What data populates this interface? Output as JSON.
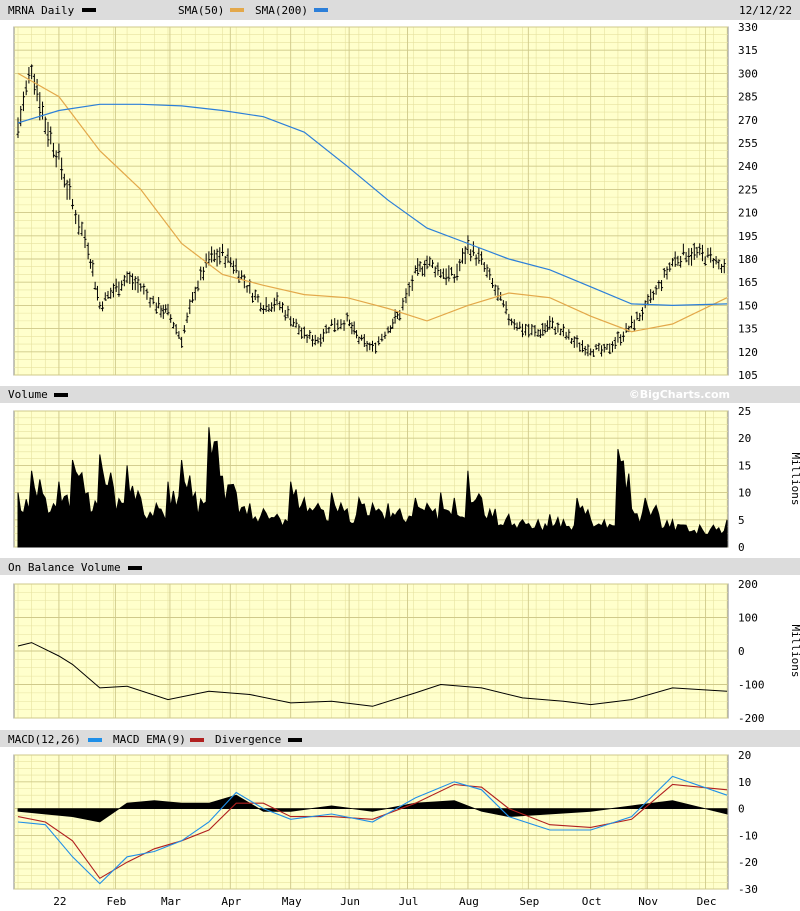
{
  "header": {
    "ticker_label": "MRNA Daily",
    "sma50_label": "SMA(50)",
    "sma200_label": "SMA(200)",
    "date": "12/12/22"
  },
  "watermark": "©BigCharts.com",
  "colors": {
    "panel_bg": "#ffffcc",
    "grid": "#e6e2a0",
    "header_bg": "#dcdcdc",
    "price": "#000000",
    "sma50": "#e3a84a",
    "sma200": "#2c7fd9",
    "macd": "#1f8fe8",
    "macd_ema": "#b02020",
    "divergence": "#000000"
  },
  "volume_panel": {
    "label": "Volume",
    "unit": "Millions"
  },
  "obv_panel": {
    "label": "On Balance Volume",
    "unit": "Millions"
  },
  "macd_panel": {
    "macd_label": "MACD(12,26)",
    "ema_label": "MACD EMA(9)",
    "divergence_label": "Divergence"
  },
  "x_axis_labels": [
    "22",
    "Feb",
    "Mar",
    "Apr",
    "May",
    "Jun",
    "Jul",
    "Aug",
    "Sep",
    "Oct",
    "Nov",
    "Dec"
  ],
  "chart_data": [
    {
      "type": "ohlc",
      "panel": "price",
      "ylim": [
        105,
        330
      ],
      "yticks": [
        105,
        120,
        135,
        150,
        165,
        180,
        195,
        210,
        225,
        240,
        255,
        270,
        285,
        300,
        315,
        330
      ],
      "grid": true,
      "series": [
        {
          "name": "MRNA Daily",
          "x": [
            "2021-12-13",
            "2021-12-20",
            "2021-12-27",
            "2022-01-03",
            "2022-01-10",
            "2022-01-18",
            "2022-01-24",
            "2022-01-31",
            "2022-02-07",
            "2022-02-14",
            "2022-02-22",
            "2022-02-28",
            "2022-03-07",
            "2022-03-14",
            "2022-03-21",
            "2022-03-28",
            "2022-04-04",
            "2022-04-11",
            "2022-04-18",
            "2022-04-25",
            "2022-05-02",
            "2022-05-09",
            "2022-05-16",
            "2022-05-23",
            "2022-05-31",
            "2022-06-06",
            "2022-06-13",
            "2022-06-21",
            "2022-06-27",
            "2022-07-05",
            "2022-07-11",
            "2022-07-18",
            "2022-07-25",
            "2022-08-01",
            "2022-08-08",
            "2022-08-15",
            "2022-08-22",
            "2022-08-29",
            "2022-09-06",
            "2022-09-12",
            "2022-09-19",
            "2022-09-26",
            "2022-10-03",
            "2022-10-10",
            "2022-10-17",
            "2022-10-24",
            "2022-10-31",
            "2022-11-07",
            "2022-11-14",
            "2022-11-21",
            "2022-11-28",
            "2022-12-05",
            "2022-12-12"
          ],
          "close": [
            265,
            305,
            268,
            245,
            215,
            188,
            150,
            160,
            168,
            162,
            150,
            145,
            128,
            160,
            180,
            183,
            175,
            160,
            150,
            152,
            142,
            130,
            128,
            138,
            140,
            128,
            122,
            135,
            145,
            170,
            178,
            172,
            168,
            188,
            178,
            160,
            142,
            135,
            132,
            138,
            132,
            125,
            122,
            120,
            128,
            137,
            148,
            162,
            178,
            184,
            183,
            180,
            170
          ]
        },
        {
          "name": "SMA(50)",
          "x": [
            "2021-12-13",
            "2022-01-03",
            "2022-01-24",
            "2022-02-14",
            "2022-03-07",
            "2022-03-28",
            "2022-04-18",
            "2022-05-09",
            "2022-05-31",
            "2022-06-21",
            "2022-07-11",
            "2022-08-01",
            "2022-08-22",
            "2022-09-12",
            "2022-10-03",
            "2022-10-24",
            "2022-11-14",
            "2022-12-12"
          ],
          "values": [
            300,
            285,
            250,
            225,
            190,
            170,
            163,
            157,
            155,
            148,
            140,
            150,
            158,
            155,
            143,
            133,
            138,
            155
          ]
        },
        {
          "name": "SMA(200)",
          "x": [
            "2021-12-13",
            "2022-01-03",
            "2022-01-24",
            "2022-02-14",
            "2022-03-07",
            "2022-03-28",
            "2022-04-18",
            "2022-05-09",
            "2022-05-31",
            "2022-06-21",
            "2022-07-11",
            "2022-08-01",
            "2022-08-22",
            "2022-09-12",
            "2022-10-03",
            "2022-10-24",
            "2022-11-14",
            "2022-12-12"
          ],
          "values": [
            268,
            276,
            280,
            280,
            279,
            276,
            272,
            262,
            240,
            218,
            200,
            190,
            180,
            173,
            162,
            151,
            150,
            151
          ]
        }
      ]
    },
    {
      "type": "bar",
      "panel": "volume",
      "ylabel": "Millions",
      "ylim": [
        0,
        25
      ],
      "yticks": [
        0,
        5,
        10,
        15,
        20,
        25
      ],
      "series": [
        {
          "name": "Volume",
          "x": [
            "2021-12-13",
            "2021-12-20",
            "2021-12-27",
            "2022-01-03",
            "2022-01-10",
            "2022-01-18",
            "2022-01-24",
            "2022-01-31",
            "2022-02-07",
            "2022-02-14",
            "2022-02-22",
            "2022-02-28",
            "2022-03-07",
            "2022-03-14",
            "2022-03-21",
            "2022-03-28",
            "2022-04-04",
            "2022-04-11",
            "2022-04-18",
            "2022-04-25",
            "2022-05-02",
            "2022-05-09",
            "2022-05-16",
            "2022-05-23",
            "2022-05-31",
            "2022-06-06",
            "2022-06-13",
            "2022-06-21",
            "2022-06-27",
            "2022-07-05",
            "2022-07-11",
            "2022-07-18",
            "2022-07-25",
            "2022-08-01",
            "2022-08-08",
            "2022-08-15",
            "2022-08-22",
            "2022-08-29",
            "2022-09-06",
            "2022-09-12",
            "2022-09-19",
            "2022-09-26",
            "2022-10-03",
            "2022-10-10",
            "2022-10-17",
            "2022-10-24",
            "2022-10-31",
            "2022-11-07",
            "2022-11-14",
            "2022-11-21",
            "2022-11-28",
            "2022-12-05",
            "2022-12-12"
          ],
          "values": [
            10,
            14,
            9,
            12,
            16,
            10,
            17,
            11,
            15,
            9,
            8,
            12,
            16,
            10,
            22,
            13,
            10,
            8,
            7,
            6,
            12,
            9,
            8,
            10,
            7,
            9,
            8,
            8,
            7,
            9,
            8,
            10,
            9,
            14,
            9,
            7,
            6,
            5,
            5,
            6,
            5,
            9,
            5,
            5,
            18,
            7,
            9,
            6,
            5,
            4,
            4,
            4,
            5
          ]
        }
      ]
    },
    {
      "type": "line",
      "panel": "on_balance_volume",
      "ylabel": "Millions",
      "ylim": [
        -200,
        200
      ],
      "yticks": [
        -200,
        -100,
        0,
        100,
        200
      ],
      "series": [
        {
          "name": "On Balance Volume",
          "x": [
            "2021-12-13",
            "2021-12-20",
            "2021-12-27",
            "2022-01-03",
            "2022-01-10",
            "2022-01-24",
            "2022-02-07",
            "2022-02-28",
            "2022-03-21",
            "2022-04-11",
            "2022-05-02",
            "2022-05-23",
            "2022-06-13",
            "2022-07-05",
            "2022-07-18",
            "2022-08-08",
            "2022-08-29",
            "2022-09-19",
            "2022-10-03",
            "2022-10-24",
            "2022-11-14",
            "2022-12-12"
          ],
          "values": [
            15,
            25,
            5,
            -15,
            -40,
            -110,
            -105,
            -145,
            -120,
            -130,
            -155,
            -150,
            -165,
            -125,
            -100,
            -110,
            -140,
            -150,
            -160,
            -145,
            -110,
            -120
          ]
        }
      ]
    },
    {
      "type": "line",
      "panel": "macd",
      "ylim": [
        -30,
        20
      ],
      "yticks": [
        -30,
        -20,
        -10,
        0,
        10,
        20
      ],
      "series": [
        {
          "name": "MACD(12,26)",
          "x": [
            "2021-12-13",
            "2021-12-27",
            "2022-01-10",
            "2022-01-24",
            "2022-02-07",
            "2022-02-21",
            "2022-03-07",
            "2022-03-21",
            "2022-04-04",
            "2022-04-18",
            "2022-05-02",
            "2022-05-23",
            "2022-06-13",
            "2022-07-05",
            "2022-07-25",
            "2022-08-08",
            "2022-08-22",
            "2022-09-12",
            "2022-10-03",
            "2022-10-24",
            "2022-11-14",
            "2022-12-12"
          ],
          "values": [
            -5,
            -6,
            -18,
            -28,
            -18,
            -16,
            -12,
            -5,
            6,
            0,
            -4,
            -2,
            -5,
            4,
            10,
            7,
            -3,
            -8,
            -8,
            -3,
            12,
            5
          ]
        },
        {
          "name": "MACD EMA(9)",
          "x": [
            "2021-12-13",
            "2021-12-27",
            "2022-01-10",
            "2022-01-24",
            "2022-02-07",
            "2022-02-21",
            "2022-03-07",
            "2022-03-21",
            "2022-04-04",
            "2022-04-18",
            "2022-05-02",
            "2022-05-23",
            "2022-06-13",
            "2022-07-05",
            "2022-07-25",
            "2022-08-08",
            "2022-08-22",
            "2022-09-12",
            "2022-10-03",
            "2022-10-24",
            "2022-11-14",
            "2022-12-12"
          ],
          "values": [
            -3,
            -5,
            -12,
            -26,
            -20,
            -15,
            -12,
            -8,
            2,
            2,
            -3,
            -3,
            -4,
            2,
            9,
            8,
            0,
            -6,
            -7,
            -4,
            9,
            7
          ]
        },
        {
          "name": "Divergence",
          "x": [
            "2021-12-13",
            "2021-12-27",
            "2022-01-10",
            "2022-01-24",
            "2022-02-07",
            "2022-02-21",
            "2022-03-07",
            "2022-03-21",
            "2022-04-04",
            "2022-04-18",
            "2022-05-02",
            "2022-05-23",
            "2022-06-13",
            "2022-07-05",
            "2022-07-25",
            "2022-08-08",
            "2022-08-22",
            "2022-09-12",
            "2022-10-03",
            "2022-10-24",
            "2022-11-14",
            "2022-12-12"
          ],
          "values": [
            -1,
            -2,
            -3,
            -5,
            2,
            3,
            2,
            2,
            5,
            -1,
            -1,
            1,
            -1,
            2,
            3,
            -1,
            -3,
            -2,
            -1,
            1,
            3,
            -2
          ]
        }
      ]
    }
  ]
}
